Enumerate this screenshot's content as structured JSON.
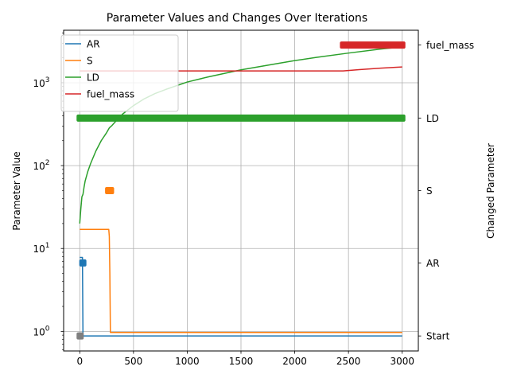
{
  "chart_data": {
    "type": "line",
    "title": "Parameter Values and Changes Over Iterations",
    "xlabel": "",
    "ylabel": "Parameter Value",
    "ylabel_right": "Changed Parameter",
    "grid": true,
    "legend_position": "top-left",
    "x_range": [
      -150,
      3150
    ],
    "y_range": [
      0.58,
      4300
    ],
    "y_scale": "log",
    "x_ticks": [
      0,
      500,
      1000,
      1500,
      2000,
      2500,
      3000
    ],
    "y_ticks": [
      {
        "value": 1,
        "base": "10",
        "exp": "0"
      },
      {
        "value": 10,
        "base": "10",
        "exp": "1"
      },
      {
        "value": 100,
        "base": "10",
        "exp": "2"
      },
      {
        "value": 1000,
        "base": "10",
        "exp": "3"
      }
    ],
    "right_axis": {
      "categories": [
        "Start",
        "AR",
        "S",
        "LD",
        "fuel_mass"
      ],
      "positions": [
        0.88,
        6.7,
        50,
        375,
        2850
      ]
    },
    "series": [
      {
        "name": "AR",
        "color": "#1f77b4",
        "points": [
          [
            0,
            7.8
          ],
          [
            25,
            7.8
          ],
          [
            30,
            0.88
          ],
          [
            3000,
            0.88
          ]
        ]
      },
      {
        "name": "S",
        "color": "#ff7f0e",
        "points": [
          [
            0,
            17
          ],
          [
            270,
            17
          ],
          [
            275,
            14
          ],
          [
            280,
            5
          ],
          [
            285,
            0.97
          ],
          [
            3000,
            0.97
          ]
        ]
      },
      {
        "name": "LD",
        "color": "#2ca02c",
        "points": [
          [
            0,
            20
          ],
          [
            10,
            30
          ],
          [
            20,
            42
          ],
          [
            30,
            45
          ],
          [
            40,
            55
          ],
          [
            50,
            65
          ],
          [
            75,
            85
          ],
          [
            100,
            105
          ],
          [
            150,
            150
          ],
          [
            200,
            200
          ],
          [
            250,
            250
          ],
          [
            275,
            285
          ],
          [
            300,
            305
          ],
          [
            350,
            360
          ],
          [
            400,
            420
          ],
          [
            500,
            530
          ],
          [
            600,
            640
          ],
          [
            700,
            740
          ],
          [
            800,
            830
          ],
          [
            1000,
            1020
          ],
          [
            1200,
            1180
          ],
          [
            1500,
            1430
          ],
          [
            1800,
            1670
          ],
          [
            2000,
            1850
          ],
          [
            2200,
            2020
          ],
          [
            2500,
            2280
          ],
          [
            2800,
            2550
          ],
          [
            3000,
            2700
          ]
        ]
      },
      {
        "name": "fuel_mass",
        "color": "#d62728",
        "points": [
          [
            0,
            1390
          ],
          [
            2450,
            1390
          ],
          [
            2600,
            1440
          ],
          [
            2800,
            1500
          ],
          [
            3000,
            1550
          ]
        ]
      }
    ],
    "change_markers": [
      {
        "parameter": "Start",
        "color": "#7f7f7f",
        "x_start": 0,
        "x_end": 0
      },
      {
        "parameter": "AR",
        "color": "#1f77b4",
        "x_start": 25,
        "x_end": 30
      },
      {
        "parameter": "S",
        "color": "#ff7f0e",
        "x_start": 265,
        "x_end": 290
      },
      {
        "parameter": "LD",
        "color": "#2ca02c",
        "x_start": 0,
        "x_end": 3000
      },
      {
        "parameter": "fuel_mass",
        "color": "#d62728",
        "x_start": 2450,
        "x_end": 3000
      }
    ]
  }
}
